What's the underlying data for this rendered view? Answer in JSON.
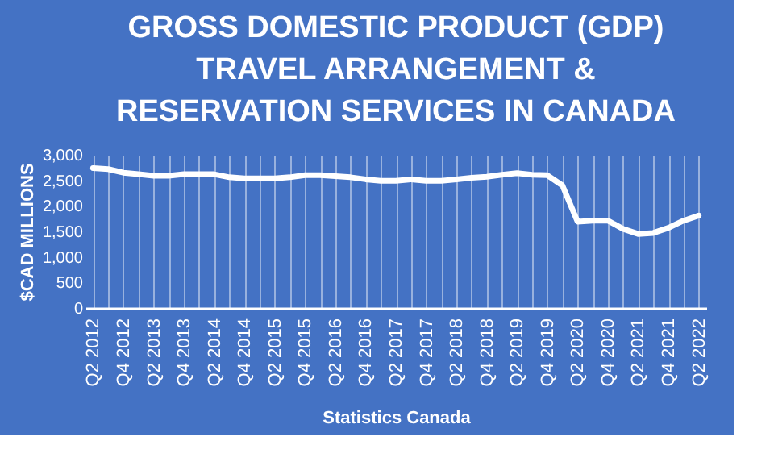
{
  "chart_data": {
    "type": "line",
    "title": [
      "GROSS DOMESTIC PRODUCT (GDP)",
      "TRAVEL ARRANGEMENT &",
      "RESERVATION SERVICES IN CANADA"
    ],
    "ylabel": "$CAD MILLIONS",
    "xlabel": "Statistics Canada",
    "categories": [
      "Q2 2012",
      null,
      "Q4 2012",
      null,
      "Q2 2013",
      null,
      "Q4 2013",
      null,
      "Q2 2014",
      null,
      "Q4 2014",
      null,
      "Q2 2015",
      null,
      "Q4 2015",
      null,
      "Q2 2016",
      null,
      "Q4 2016",
      null,
      "Q2 2017",
      null,
      "Q4 2017",
      null,
      "Q2 2018",
      null,
      "Q4 2018",
      null,
      "Q2 2019",
      null,
      "Q4 2019",
      null,
      "Q2 2020",
      null,
      "Q4 2020",
      null,
      "Q2 2021",
      null,
      "Q4 2021",
      null,
      "Q2 2022"
    ],
    "series": [
      {
        "color": "#ffffff",
        "values": [
          2740,
          2720,
          2650,
          2620,
          2590,
          2590,
          2620,
          2620,
          2620,
          2560,
          2540,
          2540,
          2540,
          2560,
          2600,
          2600,
          2580,
          2560,
          2520,
          2490,
          2490,
          2520,
          2490,
          2490,
          2520,
          2550,
          2570,
          2610,
          2640,
          2610,
          2600,
          2400,
          1690,
          1710,
          1710,
          1550,
          1450,
          1470,
          1570,
          1710,
          1810
        ]
      }
    ],
    "ylim": [
      0,
      3000
    ],
    "yticks": [
      0,
      500,
      {
        "value": 1000,
        "label": "1,000"
      },
      {
        "value": 1500,
        "label": "1,500"
      },
      {
        "value": 2000,
        "label": "2,000"
      },
      {
        "value": 2500,
        "label": "2,500"
      },
      {
        "value": 3000,
        "label": "3,000"
      }
    ],
    "grid": "x",
    "marker": "none",
    "line_style": "solid"
  }
}
